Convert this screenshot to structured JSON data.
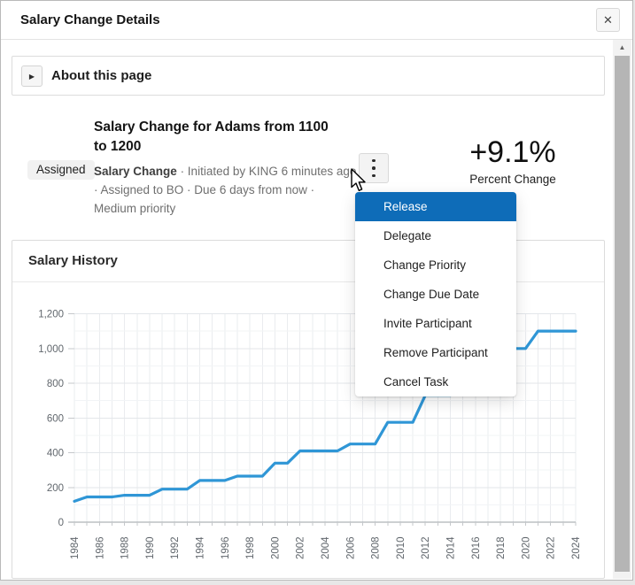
{
  "dialog": {
    "title": "Salary Change Details"
  },
  "icons": {
    "close": "✕",
    "expand_collapsed": "▶",
    "scroll_up": "▲",
    "overflow_menu": "kebab-vertical-dots"
  },
  "about": {
    "label": "About this page"
  },
  "task": {
    "status_badge": "Assigned",
    "title": "Salary Change for Adams from 1100 to 1200",
    "type_label": "Salary Change",
    "meta_text": "· Initiated by KING 6 minutes ago · Assigned to BO · Due 6 days from now · Medium priority",
    "percent_change_value": "+9.1%",
    "percent_change_label": "Percent Change"
  },
  "context_menu": {
    "items": [
      "Release",
      "Delegate",
      "Change Priority",
      "Change Due Date",
      "Invite Participant",
      "Remove Participant",
      "Cancel Task"
    ],
    "highlighted_item": "Release",
    "highlight_color": "#0e6cb8"
  },
  "salary_history": {
    "title": "Salary History"
  },
  "chart_data": {
    "type": "line",
    "title": "Salary History",
    "x": [
      1984,
      1985,
      1986,
      1987,
      1988,
      1989,
      1990,
      1991,
      1992,
      1993,
      1994,
      1995,
      1996,
      1997,
      1998,
      1999,
      2000,
      2001,
      2002,
      2003,
      2004,
      2005,
      2006,
      2007,
      2008,
      2009,
      2010,
      2011,
      2012,
      2013,
      2014,
      2015,
      2016,
      2017,
      2018,
      2019,
      2020,
      2021,
      2022,
      2023,
      2024
    ],
    "series": [
      {
        "name": "Salary",
        "color": "#2f96d6",
        "values": [
          120,
          145,
          145,
          145,
          155,
          155,
          155,
          190,
          190,
          190,
          240,
          240,
          240,
          265,
          265,
          265,
          340,
          340,
          410,
          410,
          410,
          410,
          450,
          450,
          450,
          575,
          575,
          575,
          730,
          730,
          730,
          850,
          1000,
          1000,
          1000,
          1000,
          1000,
          1100,
          1100,
          1100,
          1100
        ]
      }
    ],
    "xlabel": "",
    "ylabel": "",
    "ylim": [
      0,
      1200
    ],
    "ytick_interval": 200,
    "ytick_labels": [
      "0",
      "200",
      "400",
      "600",
      "800",
      "1,000",
      "1,200"
    ],
    "xtick_label_interval": 2,
    "grid": true,
    "legend": "none"
  }
}
